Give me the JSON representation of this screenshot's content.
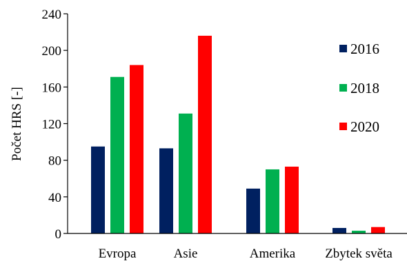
{
  "chart_data": {
    "type": "bar",
    "title": "",
    "xlabel": "",
    "ylabel": "Počet HRS [-]",
    "ylim": [
      0,
      240
    ],
    "yticks": [
      0,
      40,
      80,
      120,
      160,
      200,
      240
    ],
    "categories": [
      "Evropa",
      "Asie",
      "Amerika",
      "Zbytek světa"
    ],
    "series": [
      {
        "name": "2016",
        "color": "#002060",
        "values": [
          95,
          93,
          49,
          6
        ]
      },
      {
        "name": "2018",
        "color": "#00b050",
        "values": [
          171,
          131,
          70,
          3
        ]
      },
      {
        "name": "2020",
        "color": "#ff0000",
        "values": [
          184,
          216,
          73,
          7
        ]
      }
    ],
    "legend_position": "right",
    "grid": false
  }
}
